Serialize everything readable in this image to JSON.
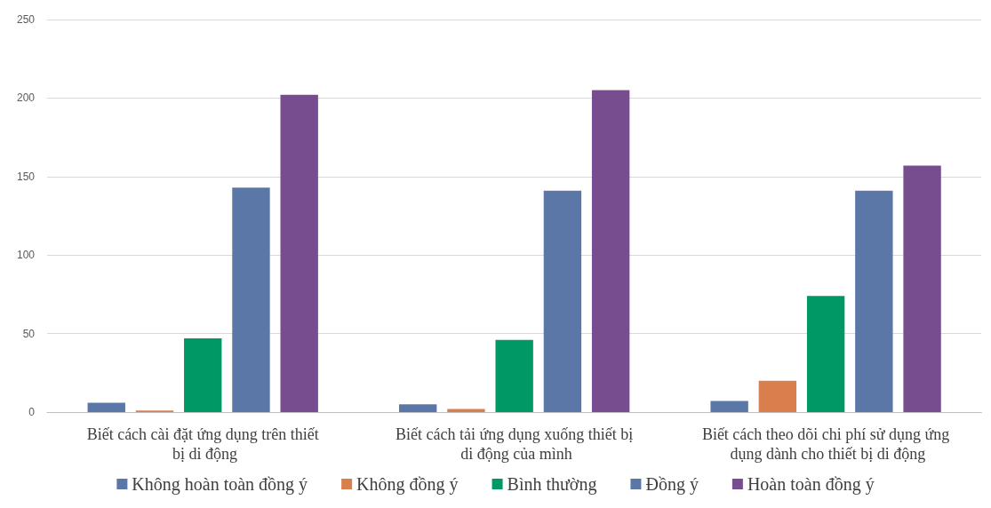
{
  "chart_data": {
    "type": "bar",
    "categories": [
      "Biết cách cài đặt ứng dụng trên thiết bị di động",
      "Biết cách tải ứng dụng xuống thiết bị di động của mình",
      "Biết cách theo dõi chi phí sử dụng ứng dụng dành cho thiết bị di động"
    ],
    "series": [
      {
        "name": "Không hoàn toàn đồng ý",
        "color": "#5b77a8",
        "values": [
          6,
          5,
          7
        ]
      },
      {
        "name": "Không đồng ý",
        "color": "#d87f4d",
        "values": [
          1,
          2,
          20
        ]
      },
      {
        "name": "Bình thường",
        "color": "#009966",
        "values": [
          47,
          46,
          74
        ]
      },
      {
        "name": "Đồng ý",
        "color": "#5b77a8",
        "values": [
          143,
          141,
          141
        ]
      },
      {
        "name": "Hoàn toàn đồng ý",
        "color": "#784d8f",
        "values": [
          202,
          205,
          157
        ]
      }
    ],
    "ylim": [
      0,
      250
    ],
    "yticks": [
      0,
      50,
      100,
      150,
      200,
      250
    ],
    "grid": "y",
    "legend": "bottom"
  }
}
